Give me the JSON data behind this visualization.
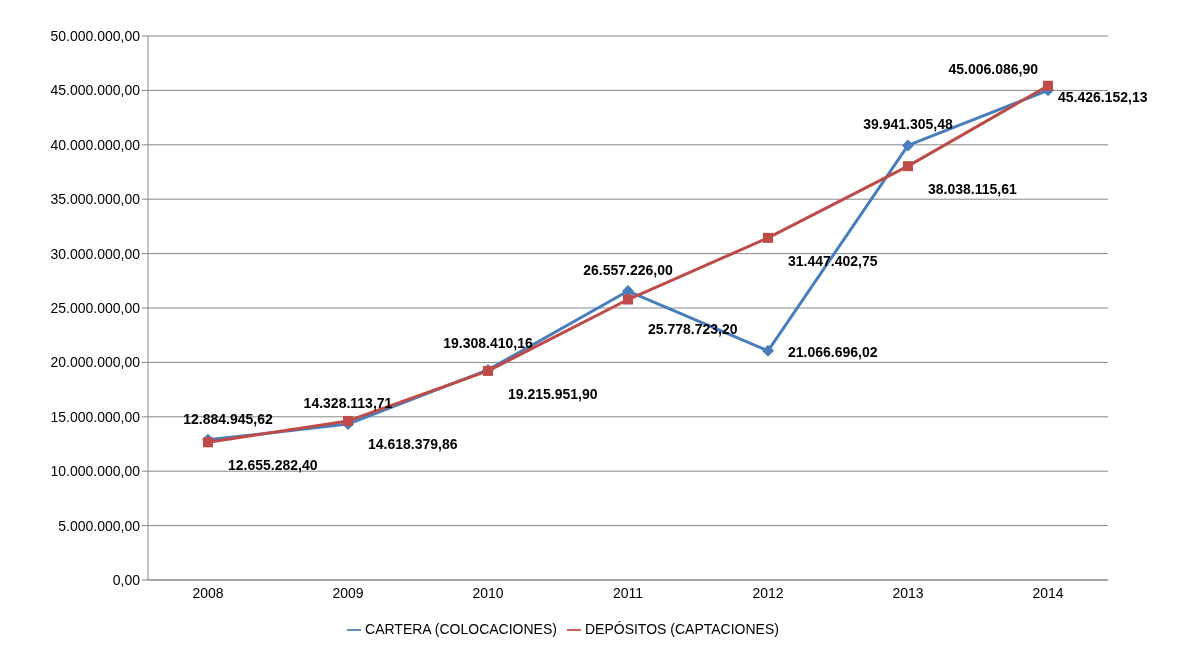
{
  "chart_data": {
    "type": "line",
    "categories": [
      "2008",
      "2009",
      "2010",
      "2011",
      "2012",
      "2013",
      "2014"
    ],
    "series": [
      {
        "name": "CARTERA (COLOCACIONES)",
        "color": "#4a7ebb",
        "marker": "diamond",
        "values": [
          12884945.62,
          14328113.71,
          19308410.16,
          26557226.0,
          21066696.02,
          39941305.48,
          45006086.9
        ],
        "value_labels": [
          "12.884.945,62",
          "14.328.113,71",
          "19.308.410,16",
          "26.557.226,00",
          "21.066.696,02",
          "39.941.305,48",
          "45.006.086,90"
        ]
      },
      {
        "name": "DEPÓSITOS (CAPTACIONES)",
        "color": "#be4b48",
        "marker": "square",
        "values": [
          12655282.4,
          14618379.86,
          19215951.9,
          25778723.2,
          31447402.75,
          38038115.61,
          45426152.13
        ],
        "value_labels": [
          "12.655.282,40",
          "14.618.379,86",
          "19.215.951,90",
          "25.778.723,20",
          "31.447.402,75",
          "38.038.115,61",
          "45.426.152,13"
        ]
      }
    ],
    "ylim": [
      0,
      50000000
    ],
    "yticks": [
      {
        "value": 0,
        "label": "0,00"
      },
      {
        "value": 5000000,
        "label": "5.000.000,00"
      },
      {
        "value": 10000000,
        "label": "10.000.000,00"
      },
      {
        "value": 15000000,
        "label": "15.000.000,00"
      },
      {
        "value": 20000000,
        "label": "20.000.000,00"
      },
      {
        "value": 25000000,
        "label": "25.000.000,00"
      },
      {
        "value": 30000000,
        "label": "30.000.000,00"
      },
      {
        "value": 35000000,
        "label": "35.000.000,00"
      },
      {
        "value": 40000000,
        "label": "40.000.000,00"
      },
      {
        "value": 45000000,
        "label": "45.000.000,00"
      },
      {
        "value": 50000000,
        "label": "50.000.000,00"
      }
    ],
    "grid": "y",
    "legend": "bottom",
    "line_style": "solid"
  }
}
